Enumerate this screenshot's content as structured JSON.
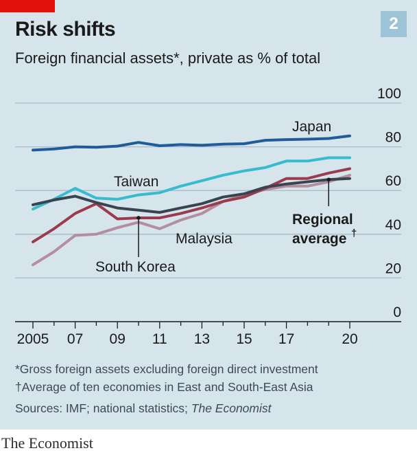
{
  "header": {
    "title": "Risk shifts",
    "subtitle": "Foreign financial assets*, private as % of total",
    "chart_number": "2"
  },
  "footnotes": {
    "asterisk": "*Gross foreign assets excluding foreign direct investment",
    "dagger": "†Average of ten economies in East and South-East Asia",
    "sources_prefix": "Sources: IMF; national statistics; ",
    "sources_publication": "The Economist"
  },
  "brand": "The Economist",
  "chart_data": {
    "type": "line",
    "x": [
      2005,
      2006,
      2007,
      2008,
      2009,
      2010,
      2011,
      2012,
      2013,
      2014,
      2015,
      2016,
      2017,
      2018,
      2019,
      2020
    ],
    "xtick_labels": [
      "2005",
      "07",
      "09",
      "11",
      "13",
      "15",
      "17",
      "20"
    ],
    "xtick_values": [
      2005,
      2007,
      2009,
      2011,
      2013,
      2015,
      2017,
      2020
    ],
    "ylim": [
      0,
      100
    ],
    "yticks": [
      0,
      20,
      40,
      60,
      80,
      100
    ],
    "grid": true,
    "series": [
      {
        "name": "Japan",
        "color": "#1f5c99",
        "values": [
          78.5,
          79,
          80,
          79.8,
          80.3,
          82,
          80.5,
          81,
          80.7,
          81.2,
          81.4,
          83,
          83.3,
          83.5,
          83.8,
          85
        ]
      },
      {
        "name": "Taiwan",
        "color": "#36bcce",
        "values": [
          51.5,
          56,
          61,
          56.5,
          56,
          58,
          59,
          62,
          64.5,
          67,
          69,
          70.5,
          73.5,
          73.5,
          75,
          75
        ]
      },
      {
        "name": "Malaysia",
        "color": "#b48e9e",
        "values": [
          26,
          32,
          39.5,
          40,
          43,
          45.5,
          42.5,
          46.5,
          49.5,
          55,
          58,
          60.5,
          62,
          62,
          64,
          67
        ]
      },
      {
        "name": "South Korea",
        "color": "#9b3b4e",
        "values": [
          36.5,
          42.5,
          49.5,
          54,
          47,
          47.5,
          47.5,
          49.5,
          52,
          55,
          57,
          61,
          65.5,
          65.5,
          68,
          70
        ]
      },
      {
        "name": "Regional average†",
        "color": "#3a4450",
        "values": [
          53.5,
          55.7,
          57.4,
          54.5,
          52,
          51,
          50,
          52,
          54,
          57,
          58.5,
          61.5,
          63,
          64,
          65,
          65.5
        ]
      }
    ],
    "annotations": {
      "japan": "Japan",
      "taiwan": "Taiwan",
      "malaysia": "Malaysia",
      "south_korea": "South Korea",
      "regional_line1": "Regional",
      "regional_line2": "average",
      "regional_dagger": "†"
    }
  }
}
